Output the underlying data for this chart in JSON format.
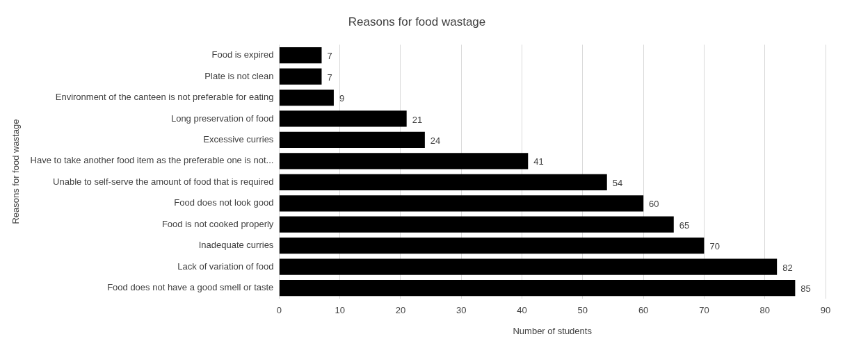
{
  "chart_data": {
    "type": "bar",
    "orientation": "horizontal",
    "title": "Reasons for food wastage",
    "xlabel": "Number of students",
    "ylabel": "Reasons for food wastage",
    "categories": [
      "Food is expired",
      "Plate is not clean",
      "Environment of the canteen is not preferable for eating",
      "Long preservation of food",
      "Excessive curries",
      "Have to take another food item as the preferable one is not...",
      "Unable to self-serve the amount of food that is required",
      "Food does not look good",
      "Food is not cooked properly",
      "Inadequate curries",
      "Lack of variation of food",
      "Food does not have a good smell or taste"
    ],
    "values": [
      7,
      7,
      9,
      21,
      24,
      41,
      54,
      60,
      65,
      70,
      82,
      85
    ],
    "color": "#000000",
    "xlim": [
      0,
      90
    ],
    "xticks": [
      0,
      10,
      20,
      30,
      40,
      50,
      60,
      70,
      80,
      90
    ],
    "grid": "x",
    "data_labels": true,
    "legend": false
  }
}
